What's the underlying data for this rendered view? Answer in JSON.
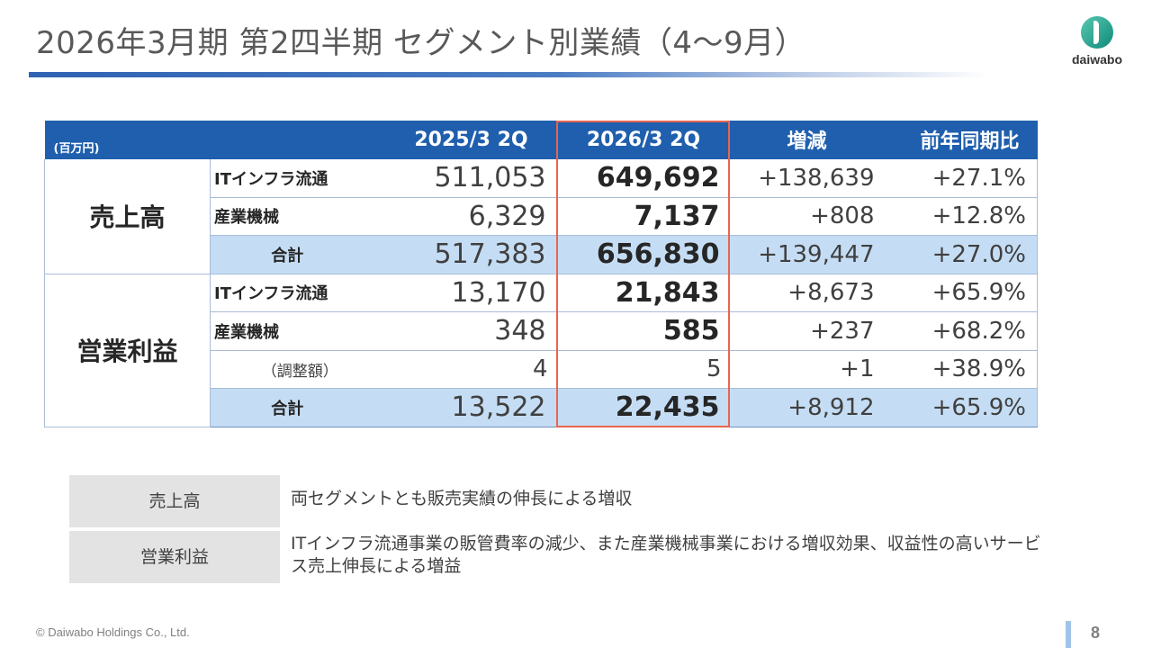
{
  "title": "2026年3月期 第2四半期 セグメント別業績（4～9月）",
  "logo": {
    "text": "daiwabo",
    "colors": {
      "mark": "#2aa58f"
    }
  },
  "table": {
    "unit": "(百万円)",
    "headers": [
      "2025/3 2Q",
      "2026/3 2Q",
      "増減",
      "前年同期比"
    ],
    "groups": [
      {
        "label": "売上高",
        "rows": [
          {
            "label": "ITインフラ流通",
            "prev": "511,053",
            "curr": "649,692",
            "diff": "+138,639",
            "ratio": "+27.1%"
          },
          {
            "label": "産業機械",
            "prev": "6,329",
            "curr": "7,137",
            "diff": "+808",
            "ratio": "+12.8%"
          },
          {
            "label": "合計",
            "prev": "517,383",
            "curr": "656,830",
            "diff": "+139,447",
            "ratio": "+27.0%"
          }
        ]
      },
      {
        "label": "営業利益",
        "rows": [
          {
            "label": "ITインフラ流通",
            "prev": "13,170",
            "curr": "21,843",
            "diff": "+8,673",
            "ratio": "+65.9%"
          },
          {
            "label": "産業機械",
            "prev": "348",
            "curr": "585",
            "diff": "+237",
            "ratio": "+68.2%"
          },
          {
            "label": "（調整額）",
            "prev": "4",
            "curr": "5",
            "diff": "+1",
            "ratio": "+38.9%"
          },
          {
            "label": "合計",
            "prev": "13,522",
            "curr": "22,435",
            "diff": "+8,912",
            "ratio": "+65.9%"
          }
        ]
      }
    ]
  },
  "notes": [
    {
      "label": "売上高",
      "text": "両セグメントとも販売実績の伸長による増収"
    },
    {
      "label": "営業利益",
      "text": "ITインフラ流通事業の販管費率の減少、また産業機械事業における増収効果、収益性の高いサービス売上伸長による増益"
    }
  ],
  "footer": {
    "copyright": "© Daiwabo Holdings Co., Ltd.",
    "page": "8"
  },
  "colors": {
    "header_bg": "#1f5fae",
    "total_row_bg": "#c5ddf4",
    "highlight": "#e8654f",
    "title_rule": "#2f62b3"
  }
}
